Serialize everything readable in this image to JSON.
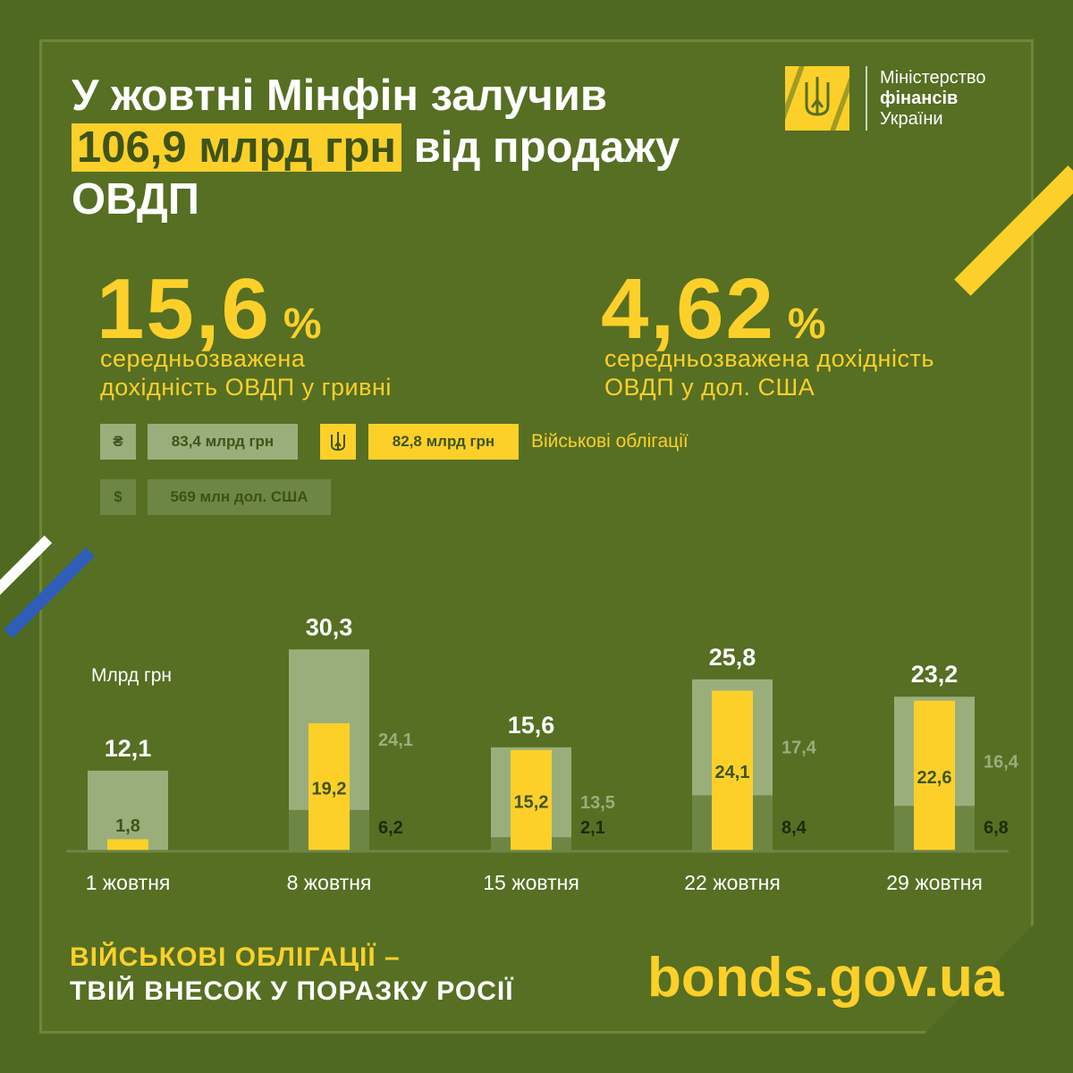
{
  "title": {
    "line1": "У жовтні Мінфін залучив",
    "highlight": "106,9 млрд грн",
    "line2_rest": " від продажу",
    "line3": "ОВДП"
  },
  "logo": {
    "line1": "Міністерство",
    "line2": "фінансів",
    "line3": "України"
  },
  "stats": [
    {
      "value": "15,6",
      "unit": "%",
      "desc1": "середньозважена",
      "desc2": "дохідність ОВДП у гривні"
    },
    {
      "value": "4,62",
      "unit": "%",
      "desc1": "середньозважена дохідність",
      "desc2": "ОВДП у дол. США"
    }
  ],
  "legend": {
    "uah_symbol": "₴",
    "uah_amount": "83,4 млрд грн",
    "military_amount": "82,8 млрд грн",
    "military_label": "Військові облігації",
    "usd_symbol": "$",
    "usd_amount": "569 млн дол. США"
  },
  "colors": {
    "background": "#4f6a20",
    "accent_yellow": "#fcd029",
    "uah_bar": "#9aae7c",
    "usd_bar": "#6e8644",
    "white": "#ffffff"
  },
  "chart_data": {
    "type": "bar",
    "unit_label": "Млрд грн",
    "categories": [
      "1 жовтня",
      "8 жовтня",
      "15 жовтня",
      "22 жовтня",
      "29 жовтня"
    ],
    "totals": [
      12.1,
      30.3,
      15.6,
      25.8,
      23.2
    ],
    "total_labels": [
      "12,1",
      "30,3",
      "15,6",
      "25,8",
      "23,2"
    ],
    "series": [
      {
        "name": "UAH",
        "values": [
          12.1,
          24.1,
          13.5,
          17.4,
          16.4
        ],
        "labels": [
          "",
          "24,1",
          "13,5",
          "17,4",
          "16,4"
        ]
      },
      {
        "name": "USD",
        "values": [
          0,
          6.2,
          2.1,
          8.4,
          6.8
        ],
        "labels": [
          "",
          "6,2",
          "2,1",
          "8,4",
          "6,8"
        ]
      },
      {
        "name": "Військові облігації",
        "values": [
          1.8,
          19.2,
          15.2,
          24.1,
          22.6
        ],
        "labels": [
          "1,8",
          "19,2",
          "15,2",
          "24,1",
          "22,6"
        ]
      }
    ]
  },
  "footer": {
    "line1": "ВІЙСЬКОВІ ОБЛІГАЦІЇ –",
    "line2": "ТВІЙ ВНЕСОК У ПОРАЗКУ РОСІЇ",
    "site": "bonds.gov.ua"
  }
}
